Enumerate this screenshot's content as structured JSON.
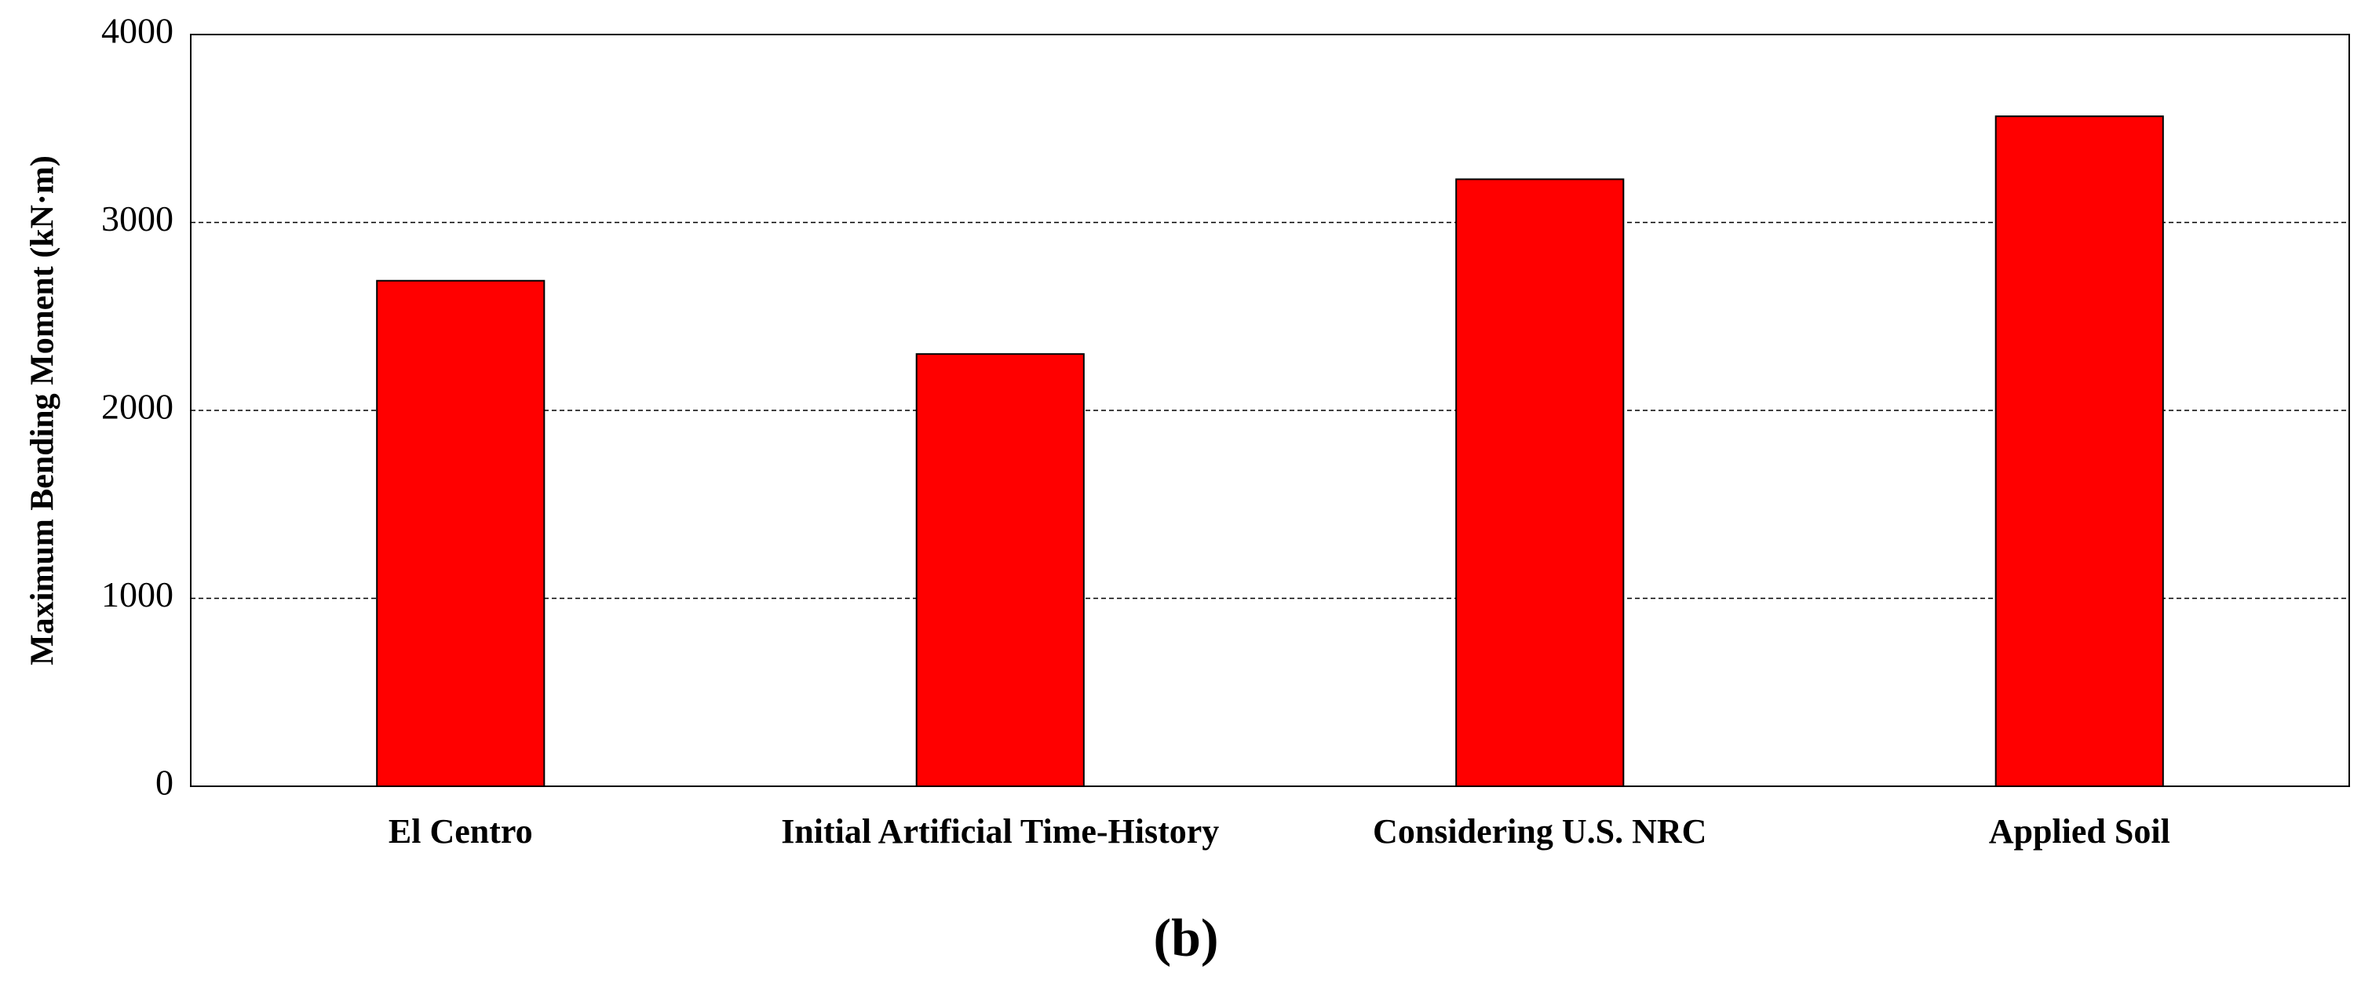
{
  "chart_data": {
    "type": "bar",
    "panel_label": "(b)",
    "y_label": "Maximum Bending Moment (kN·m)",
    "categories": [
      "El Centro",
      "Initial Artificial Time-History",
      "Considering U.S. NRC",
      "Applied Soil"
    ],
    "values": [
      2690,
      2300,
      3230,
      3565
    ],
    "color": "#ff0000",
    "ylim": [
      0,
      4000
    ],
    "yticks": [
      0,
      1000,
      2000,
      3000,
      4000
    ],
    "grid": true
  }
}
